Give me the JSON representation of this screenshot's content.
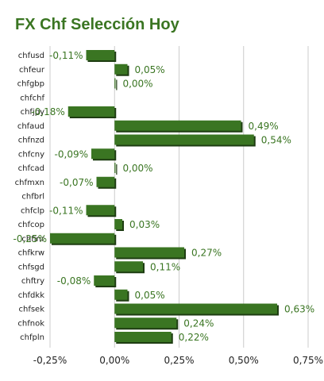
{
  "chart_data": {
    "type": "bar",
    "orientation": "horizontal",
    "title": "FX Chf Selección Hoy",
    "categories": [
      "chfusd",
      "chfeur",
      "chfgbp",
      "chfchf",
      "chfjpy",
      "chfaud",
      "chfnzd",
      "chfcny",
      "chfcad",
      "chfmxn",
      "chfbrl",
      "chfclp",
      "chfcop",
      "chfinr",
      "chfkrw",
      "chfsgd",
      "chftry",
      "chfdkk",
      "chfsek",
      "chfnok",
      "chfpln"
    ],
    "values": [
      -0.11,
      0.05,
      0.0,
      null,
      -0.18,
      0.49,
      0.54,
      -0.09,
      0.0,
      -0.07,
      null,
      -0.11,
      0.03,
      -0.25,
      0.27,
      0.11,
      -0.08,
      0.05,
      0.63,
      0.24,
      0.22
    ],
    "value_labels": [
      "-0,11%",
      "0,05%",
      "0,00%",
      "",
      "-0,18%",
      "0,49%",
      "0,54%",
      "-0,09%",
      "0,00%",
      "-0,07%",
      "",
      "-0,11%",
      "0,03%",
      "-0,25%",
      "0,27%",
      "0,11%",
      "-0,08%",
      "0,05%",
      "0,63%",
      "0,24%",
      "0,22%"
    ],
    "xlim": [
      -0.25,
      0.75
    ],
    "xticks": [
      -0.25,
      0.0,
      0.25,
      0.5,
      0.75
    ],
    "xtick_labels": [
      "-0,25%",
      "0,00%",
      "0,25%",
      "0,50%",
      "0,75%"
    ],
    "grid": true,
    "colors": {
      "bar": "#3a7522",
      "bar_shadow": "#1e3d12",
      "title": "#3a7522",
      "grid": "#cccccc"
    }
  }
}
